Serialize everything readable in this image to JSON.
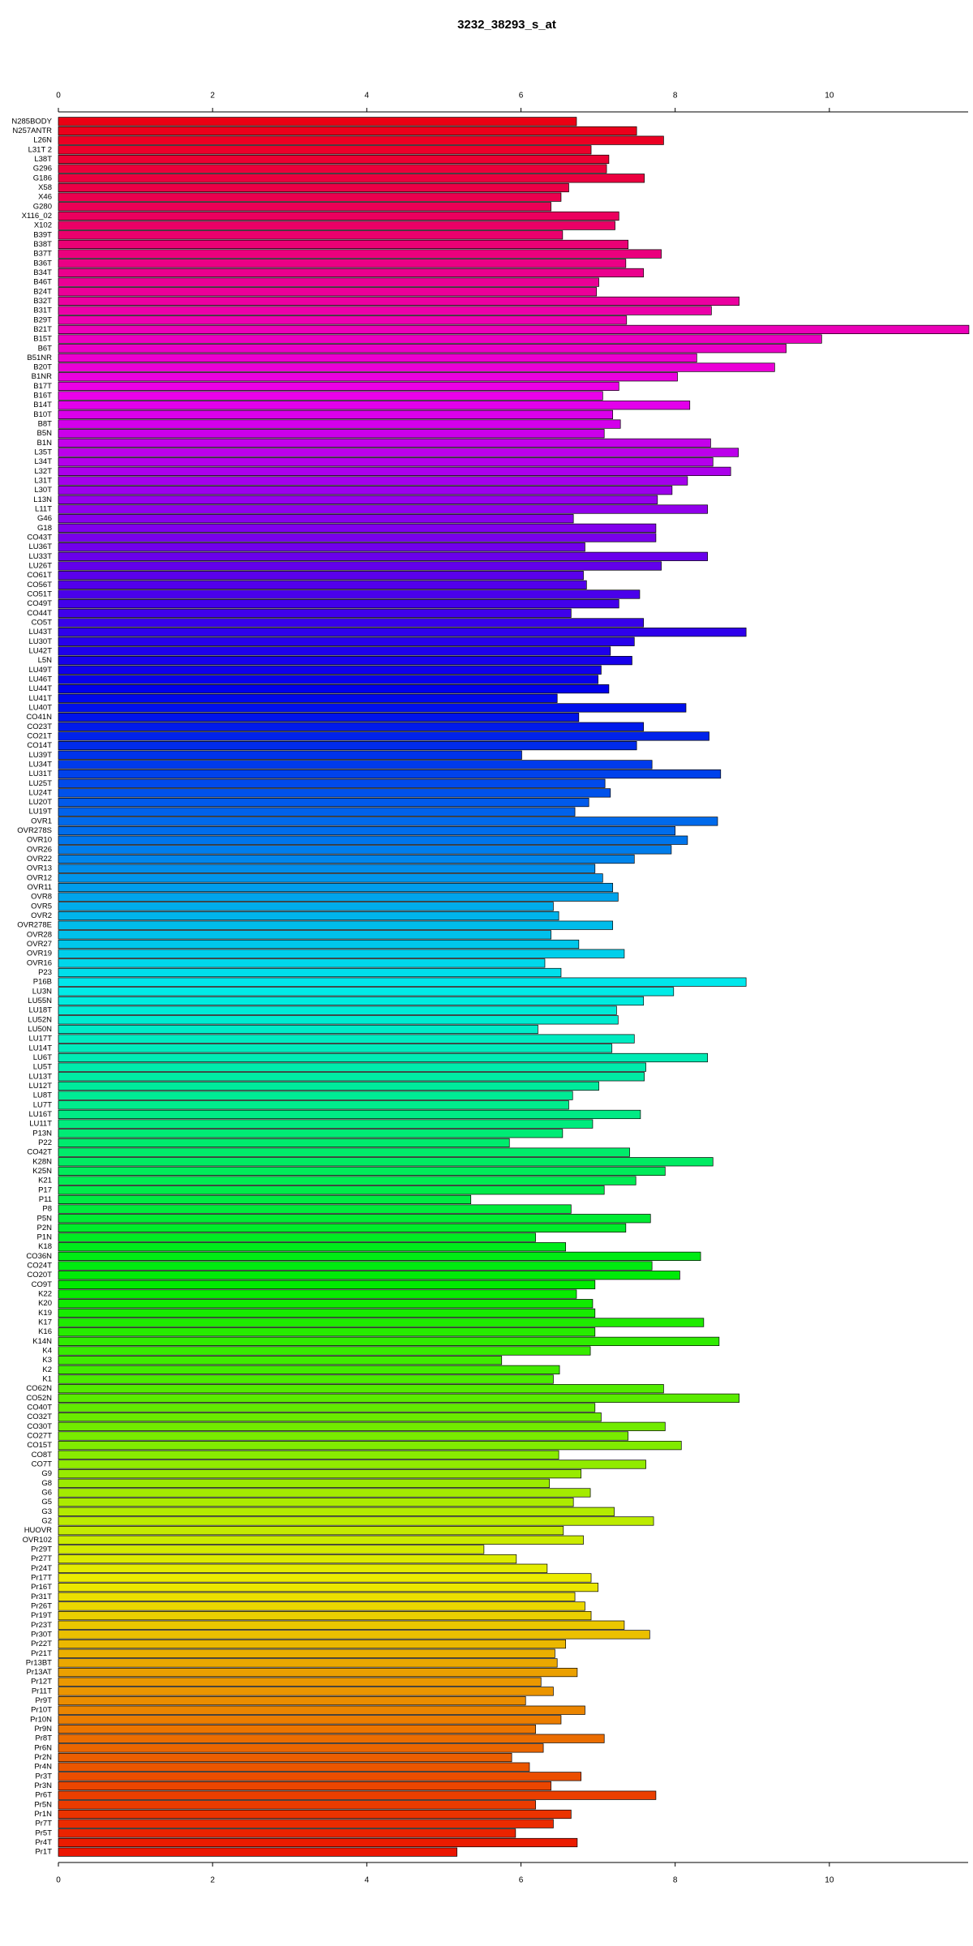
{
  "chart_data": {
    "type": "barh",
    "title": "3232_38293_s_at",
    "categories": [
      "N285BODY",
      "N257ANTR",
      "L26N",
      "L31T 2",
      "L38T",
      "G296",
      "G186",
      "X58",
      "X46",
      "G280",
      "X116_02",
      "X102",
      "B39T",
      "B38T",
      "B37T",
      "B36T",
      "B34T",
      "B46T",
      "B24T",
      "B32T",
      "B31T",
      "B29T",
      "B21T",
      "B15T",
      "B6T",
      "B51NR",
      "B20T",
      "B1NR",
      "B17T",
      "B16T",
      "B14T",
      "B10T",
      "B8T",
      "B5N",
      "B1N",
      "L35T",
      "L34T",
      "L32T",
      "L31T",
      "L30T",
      "L13N",
      "L11T",
      "G46",
      "G18",
      "CO43T",
      "LU36T",
      "LU33T",
      "LU26T",
      "CO61T",
      "CO56T",
      "CO51T",
      "CO49T",
      "CO44T",
      "CO5T",
      "LU43T",
      "LU30T",
      "LU42T",
      "L5N",
      "LU49T",
      "LU46T",
      "LU44T",
      "LU41T",
      "LU40T",
      "CO41N",
      "CO23T",
      "CO21T",
      "CO14T",
      "LU39T",
      "LU34T",
      "LU31T",
      "LU25T",
      "LU24T",
      "LU20T",
      "LU19T",
      "OVR1",
      "OVR278S",
      "OVR10",
      "OVR26",
      "OVR22",
      "OVR13",
      "OVR12",
      "OVR11",
      "OVR8",
      "OVR5",
      "OVR2",
      "OVR278E",
      "OVR28",
      "OVR27",
      "OVR19",
      "OVR16",
      "P23",
      "P16B",
      "LU3N",
      "LU55N",
      "LU18T",
      "LU52N",
      "LU50N",
      "LU17T",
      "LU14T",
      "LU6T",
      "LU5T",
      "LU13T",
      "LU12T",
      "LU8T",
      "LU7T",
      "LU16T",
      "LU11T",
      "P13N",
      "P22",
      "CO42T",
      "K28N",
      "K25N",
      "K21",
      "P17",
      "P11",
      "P8",
      "P5N",
      "P2N",
      "P1N",
      "K18",
      "CO36N",
      "CO24T",
      "CO20T",
      "CO9T",
      "K22",
      "K20",
      "K19",
      "K17",
      "K16",
      "K14N",
      "K4",
      "K3",
      "K2",
      "K1",
      "CO62N",
      "CO52N",
      "CO40T",
      "CO32T",
      "CO30T",
      "CO27T",
      "CO15T",
      "CO8T",
      "CO7T",
      "G9",
      "G8",
      "G6",
      "G5",
      "G3",
      "G2",
      "HUOVR",
      "OVR102",
      "Pr29T",
      "Pr27T",
      "Pr24T",
      "Pr17T",
      "Pr16T",
      "Pr31T",
      "Pr26T",
      "Pr19T",
      "Pr23T",
      "Pr30T",
      "Pr22T",
      "Pr21T",
      "Pr13BT",
      "Pr13AT",
      "Pr12T",
      "Pr11T",
      "Pr9T",
      "Pr10T",
      "Pr10N",
      "Pr9N",
      "Pr8T",
      "Pr6N",
      "Pr2N",
      "Pr4N",
      "Pr3T",
      "Pr3N",
      "Pr6T",
      "Pr5N",
      "Pr1N",
      "Pr7T",
      "Pr5T",
      "Pr4T",
      "Pr1T"
    ],
    "values": [
      6.72,
      7.5,
      7.85,
      6.91,
      7.14,
      7.11,
      7.6,
      6.62,
      6.52,
      6.39,
      7.27,
      7.22,
      6.54,
      7.39,
      7.82,
      7.36,
      7.59,
      7.01,
      6.98,
      8.83,
      8.47,
      7.37,
      11.81,
      9.9,
      9.44,
      8.28,
      9.29,
      8.03,
      7.27,
      7.06,
      8.19,
      7.19,
      7.29,
      7.08,
      8.46,
      8.82,
      8.49,
      8.72,
      8.16,
      7.96,
      7.77,
      8.42,
      6.68,
      7.75,
      7.75,
      6.83,
      8.42,
      7.82,
      6.81,
      6.85,
      7.54,
      7.27,
      6.65,
      7.59,
      8.92,
      7.47,
      7.16,
      7.44,
      7.04,
      7.0,
      7.14,
      6.47,
      8.14,
      6.75,
      7.59,
      8.44,
      7.5,
      6.01,
      7.7,
      8.59,
      7.09,
      7.16,
      6.88,
      6.7,
      8.55,
      8.0,
      8.16,
      7.95,
      7.47,
      6.96,
      7.06,
      7.19,
      7.26,
      6.42,
      6.49,
      7.19,
      6.39,
      6.75,
      7.34,
      6.31,
      6.52,
      8.92,
      7.98,
      7.59,
      7.24,
      7.26,
      6.22,
      7.47,
      7.18,
      8.42,
      7.62,
      7.6,
      7.01,
      6.67,
      6.62,
      7.55,
      6.93,
      6.54,
      5.85,
      7.41,
      8.49,
      7.87,
      7.49,
      7.08,
      5.35,
      6.65,
      7.68,
      7.36,
      6.19,
      6.58,
      8.33,
      7.7,
      8.06,
      6.96,
      6.72,
      6.93,
      6.96,
      8.37,
      6.96,
      8.57,
      6.9,
      5.75,
      6.5,
      6.42,
      7.85,
      8.83,
      6.96,
      7.04,
      7.87,
      7.39,
      8.08,
      6.49,
      7.62,
      6.78,
      6.37,
      6.9,
      6.68,
      7.21,
      7.72,
      6.55,
      6.81,
      5.52,
      5.94,
      6.34,
      6.91,
      7.0,
      6.7,
      6.83,
      6.91,
      7.34,
      7.67,
      6.58,
      6.44,
      6.47,
      6.73,
      6.26,
      6.42,
      6.06,
      6.83,
      6.52,
      6.19,
      7.08,
      6.29,
      5.88,
      6.11,
      6.78,
      6.39,
      7.75,
      6.19,
      6.65,
      6.42,
      5.93,
      6.73,
      5.17
    ],
    "colors": [
      "hsl(355,100%,46%)",
      "hsl(353,100%,46%)",
      "hsl(351,100%,46%)",
      "hsl(349,100%,46%)",
      "hsl(347,100%,46%)",
      "hsl(345,100%,46%)",
      "hsl(344,100%,46%)",
      "hsl(342,100%,46%)",
      "hsl(340,100%,46%)",
      "hsl(338,100%,46%)",
      "hsl(336,100%,46%)",
      "hsl(334,100%,46%)",
      "hsl(332,100%,46%)",
      "hsl(330,100%,46%)",
      "hsl(328,100%,46%)",
      "hsl(326,100%,46%)",
      "hsl(324,100%,46%)",
      "hsl(322,100%,46%)",
      "hsl(321,100%,46%)",
      "hsl(319,100%,46%)",
      "hsl(317,100%,46%)",
      "hsl(315,100%,46%)",
      "hsl(313,100%,46%)",
      "hsl(311,100%,46%)",
      "hsl(309,100%,46%)",
      "hsl(307,100%,46%)",
      "hsl(305,100%,46%)",
      "hsl(303,100%,46%)",
      "hsl(301,100%,46%)",
      "hsl(300,100%,46%)",
      "hsl(298,100%,46%)",
      "hsl(296,100%,46%)",
      "hsl(294,100%,46%)",
      "hsl(292,100%,46%)",
      "hsl(290,100%,46%)",
      "hsl(288,100%,46%)",
      "hsl(286,100%,46%)",
      "hsl(284,100%,46%)",
      "hsl(282,100%,46%)",
      "hsl(280,100%,46%)",
      "hsl(278,100%,46%)",
      "hsl(277,100%,46%)",
      "hsl(275,100%,46%)",
      "hsl(273,100%,46%)",
      "hsl(271,100%,46%)",
      "hsl(269,100%,46%)",
      "hsl(267,100%,46%)",
      "hsl(265,100%,46%)",
      "hsl(263,100%,46%)",
      "hsl(261,100%,46%)",
      "hsl(259,100%,46%)",
      "hsl(257,100%,46%)",
      "hsl(256,100%,46%)",
      "hsl(254,100%,46%)",
      "hsl(252,100%,46%)",
      "hsl(250,100%,46%)",
      "hsl(248,100%,46%)",
      "hsl(246,100%,46%)",
      "hsl(244,100%,46%)",
      "hsl(242,100%,46%)",
      "hsl(240,100%,46%)",
      "hsl(238,100%,46%)",
      "hsl(236,100%,46%)",
      "hsl(235,100%,46%)",
      "hsl(233,100%,46%)",
      "hsl(231,100%,46%)",
      "hsl(229,100%,46%)",
      "hsl(227,100%,46%)",
      "hsl(225,100%,46%)",
      "hsl(223,100%,46%)",
      "hsl(221,100%,46%)",
      "hsl(219,100%,46%)",
      "hsl(217,100%,46%)",
      "hsl(215,100%,46%)",
      "hsl(213,100%,46%)",
      "hsl(212,100%,46%)",
      "hsl(210,100%,46%)",
      "hsl(208,100%,46%)",
      "hsl(206,100%,46%)",
      "hsl(204,100%,46%)",
      "hsl(202,100%,46%)",
      "hsl(200,100%,46%)",
      "hsl(198,100%,46%)",
      "hsl(196,100%,46%)",
      "hsl(194,100%,46%)",
      "hsl(192,100%,46%)",
      "hsl(191,100%,46%)",
      "hsl(189,100%,46%)",
      "hsl(187,100%,46%)",
      "hsl(185,100%,46%)",
      "hsl(183,100%,46%)",
      "hsl(181,100%,46%)",
      "hsl(179,100%,46%)",
      "hsl(177,100%,46%)",
      "hsl(175,100%,46%)",
      "hsl(173,100%,46%)",
      "hsl(171,100%,46%)",
      "hsl(169,100%,46%)",
      "hsl(168,100%,46%)",
      "hsl(166,100%,46%)",
      "hsl(164,100%,46%)",
      "hsl(162,100%,46%)",
      "hsl(160,100%,46%)",
      "hsl(158,100%,46%)",
      "hsl(156,100%,46%)",
      "hsl(154,100%,46%)",
      "hsl(152,100%,46%)",
      "hsl(150,100%,46%)",
      "hsl(148,100%,46%)",
      "hsl(147,100%,46%)",
      "hsl(145,100%,46%)",
      "hsl(143,100%,46%)",
      "hsl(141,100%,46%)",
      "hsl(139,100%,46%)",
      "hsl(137,100%,46%)",
      "hsl(135,100%,46%)",
      "hsl(133,100%,46%)",
      "hsl(131,100%,46%)",
      "hsl(129,100%,46%)",
      "hsl(127,100%,46%)",
      "hsl(125,100%,46%)",
      "hsl(124,100%,46%)",
      "hsl(122,100%,46%)",
      "hsl(120,100%,46%)",
      "hsl(118,100%,46%)",
      "hsl(116,100%,46%)",
      "hsl(114,100%,46%)",
      "hsl(112,100%,46%)",
      "hsl(110,100%,46%)",
      "hsl(108,100%,46%)",
      "hsl(106,100%,46%)",
      "hsl(104,100%,46%)",
      "hsl(103,100%,46%)",
      "hsl(101,100%,46%)",
      "hsl(99,100%,46%)",
      "hsl(97,100%,46%)",
      "hsl(95,100%,46%)",
      "hsl(93,100%,46%)",
      "hsl(91,100%,46%)",
      "hsl(89,100%,46%)",
      "hsl(87,100%,46%)",
      "hsl(85,100%,46%)",
      "hsl(83,100%,46%)",
      "hsl(81,100%,46%)",
      "hsl(80,100%,46%)",
      "hsl(78,100%,46%)",
      "hsl(76,100%,46%)",
      "hsl(74,100%,46%)",
      "hsl(72,100%,46%)",
      "hsl(70,100%,46%)",
      "hsl(68,100%,46%)",
      "hsl(66,100%,46%)",
      "hsl(64,100%,46%)",
      "hsl(62,100%,46%)",
      "hsl(60,100%,46%)",
      "hsl(59,100%,46%)",
      "hsl(57,100%,46%)",
      "hsl(55,100%,46%)",
      "hsl(53,100%,46%)",
      "hsl(51,100%,46%)",
      "hsl(49,100%,46%)",
      "hsl(47,100%,46%)",
      "hsl(45,100%,46%)",
      "hsl(43,100%,46%)",
      "hsl(41,100%,46%)",
      "hsl(39,100%,46%)",
      "hsl(38,100%,46%)",
      "hsl(36,100%,46%)",
      "hsl(34,100%,46%)",
      "hsl(32,100%,46%)",
      "hsl(30,100%,46%)",
      "hsl(28,100%,46%)",
      "hsl(26,100%,46%)",
      "hsl(24,100%,46%)",
      "hsl(22,100%,46%)",
      "hsl(20,100%,46%)",
      "hsl(18,100%,46%)",
      "hsl(16,100%,46%)",
      "hsl(15,100%,46%)",
      "hsl(13,100%,46%)",
      "hsl(11,100%,46%)",
      "hsl(9,100%,46%)",
      "hsl(7,100%,46%)",
      "hsl(5,100%,46%)"
    ],
    "xlim": [
      0,
      11.8
    ],
    "xticks": [
      0,
      2,
      4,
      6,
      8,
      10
    ]
  }
}
